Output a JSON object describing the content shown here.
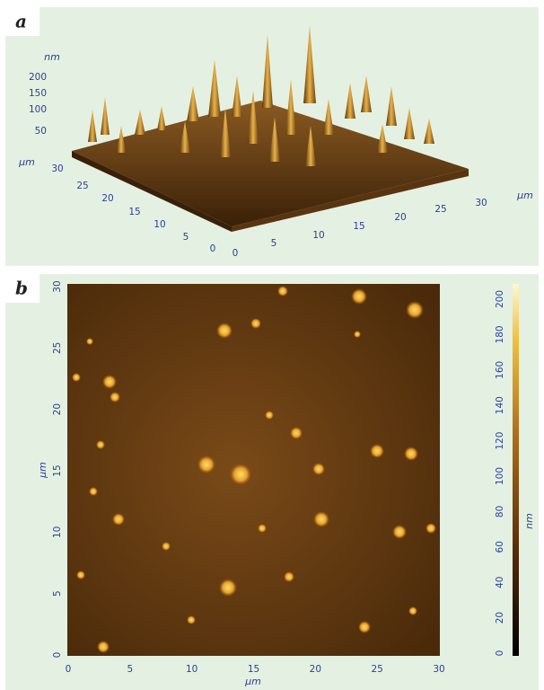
{
  "panels": {
    "a": {
      "label": "a",
      "z_axis": {
        "label": "nm",
        "ticks": [
          200,
          150,
          100,
          50
        ]
      },
      "y_axis": {
        "label": "µm",
        "ticks": [
          30,
          25,
          20,
          15,
          10,
          5,
          0
        ]
      },
      "x_axis": {
        "label": "µm",
        "ticks": [
          0,
          5,
          10,
          15,
          20,
          25,
          30
        ]
      }
    },
    "b": {
      "label": "b",
      "x_axis": {
        "label": "µm",
        "ticks": [
          0,
          5,
          10,
          15,
          20,
          25,
          30
        ]
      },
      "y_axis": {
        "label": "µm",
        "ticks": [
          0,
          5,
          10,
          15,
          20,
          25,
          30
        ]
      },
      "colorbar": {
        "label": "nm",
        "ticks": [
          0,
          20,
          40,
          60,
          80,
          100,
          120,
          140,
          160,
          180,
          200
        ]
      }
    }
  }
}
